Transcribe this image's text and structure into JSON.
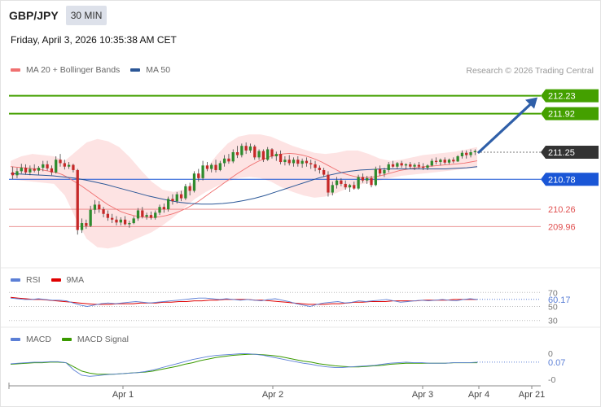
{
  "header": {
    "symbol": "GBP/JPY",
    "timeframe": "30 MIN",
    "datetime": "Friday, April 3, 2026 10:35:38 AM CET",
    "copyright": "Research © 2026 Trading Central"
  },
  "legends": {
    "main": [
      {
        "label": "MA 20 + Bollinger Bands",
        "color": "#f07070"
      },
      {
        "label": "MA 50",
        "color": "#2b5797"
      }
    ],
    "rsi": [
      {
        "label": "RSI",
        "color": "#5b7fd6"
      },
      {
        "label": "9MA",
        "color": "#e00000"
      }
    ],
    "macd": [
      {
        "label": "MACD",
        "color": "#5b7fd6"
      },
      {
        "label": "MACD Signal",
        "color": "#3a9a00"
      }
    ]
  },
  "chart_data": {
    "type": "candlestick",
    "x_labels": [
      "Apr 1",
      "Apr 2",
      "Apr 3",
      "Apr 4",
      "Apr 21"
    ],
    "ylim": [
      209.3,
      212.55
    ],
    "candles": [
      [
        210.9,
        211.0,
        210.78,
        210.85
      ],
      [
        210.85,
        210.98,
        210.8,
        210.92
      ],
      [
        210.92,
        211.05,
        210.88,
        210.98
      ],
      [
        210.98,
        211.04,
        210.86,
        210.9
      ],
      [
        210.9,
        211.02,
        210.85,
        210.96
      ],
      [
        210.96,
        211.04,
        210.9,
        210.93
      ],
      [
        210.93,
        211.01,
        210.86,
        210.98
      ],
      [
        210.98,
        211.1,
        210.92,
        211.04
      ],
      [
        211.04,
        211.1,
        210.93,
        210.97
      ],
      [
        210.97,
        211.02,
        210.85,
        210.9
      ],
      [
        210.9,
        211.18,
        210.88,
        211.12
      ],
      [
        211.12,
        211.22,
        211.0,
        211.06
      ],
      [
        211.06,
        211.12,
        210.95,
        211.0
      ],
      [
        211.0,
        211.08,
        210.96,
        211.03
      ],
      [
        211.03,
        211.05,
        210.9,
        210.94
      ],
      [
        210.94,
        210.96,
        209.82,
        209.9
      ],
      [
        209.9,
        210.1,
        209.85,
        210.02
      ],
      [
        210.02,
        210.08,
        209.92,
        209.97
      ],
      [
        209.97,
        210.32,
        209.95,
        210.25
      ],
      [
        210.25,
        210.42,
        210.18,
        210.34
      ],
      [
        210.34,
        210.4,
        210.2,
        210.26
      ],
      [
        210.26,
        210.3,
        210.12,
        210.18
      ],
      [
        210.18,
        210.24,
        210.06,
        210.11
      ],
      [
        210.11,
        210.18,
        210.02,
        210.08
      ],
      [
        210.08,
        210.14,
        209.98,
        210.03
      ],
      [
        210.03,
        210.12,
        209.98,
        210.08
      ],
      [
        210.08,
        210.14,
        209.98,
        210.0
      ],
      [
        210.0,
        210.06,
        209.94,
        210.02
      ],
      [
        210.02,
        210.14,
        210.0,
        210.1
      ],
      [
        210.1,
        210.28,
        210.06,
        210.24
      ],
      [
        210.24,
        210.3,
        210.1,
        210.13
      ],
      [
        210.13,
        210.2,
        210.08,
        210.16
      ],
      [
        210.16,
        210.22,
        210.08,
        210.11
      ],
      [
        210.11,
        210.24,
        210.08,
        210.2
      ],
      [
        210.2,
        210.34,
        210.16,
        210.3
      ],
      [
        210.3,
        210.36,
        210.2,
        210.26
      ],
      [
        210.26,
        210.48,
        210.22,
        210.44
      ],
      [
        210.44,
        210.52,
        210.34,
        210.4
      ],
      [
        210.4,
        210.56,
        210.36,
        210.52
      ],
      [
        210.52,
        210.58,
        210.4,
        210.45
      ],
      [
        210.45,
        210.7,
        210.42,
        210.66
      ],
      [
        210.66,
        210.72,
        210.5,
        210.58
      ],
      [
        210.58,
        210.92,
        210.55,
        210.88
      ],
      [
        210.88,
        210.96,
        210.74,
        210.8
      ],
      [
        210.8,
        211.1,
        210.76,
        211.02
      ],
      [
        211.02,
        211.08,
        210.92,
        210.96
      ],
      [
        210.96,
        211.06,
        210.9,
        211.03
      ],
      [
        211.03,
        211.12,
        210.9,
        210.94
      ],
      [
        210.94,
        211.1,
        210.92,
        211.06
      ],
      [
        211.06,
        211.2,
        211.0,
        211.14
      ],
      [
        211.14,
        211.22,
        211.05,
        211.09
      ],
      [
        211.09,
        211.3,
        211.06,
        211.25
      ],
      [
        211.25,
        211.36,
        211.15,
        211.2
      ],
      [
        211.2,
        211.4,
        211.16,
        211.36
      ],
      [
        211.36,
        211.42,
        211.22,
        211.28
      ],
      [
        211.28,
        211.4,
        211.24,
        211.35
      ],
      [
        211.35,
        211.38,
        211.12,
        211.16
      ],
      [
        211.16,
        211.3,
        211.12,
        211.27
      ],
      [
        211.27,
        211.3,
        211.08,
        211.12
      ],
      [
        211.12,
        211.34,
        211.1,
        211.3
      ],
      [
        211.3,
        211.32,
        211.14,
        211.18
      ],
      [
        211.18,
        211.26,
        211.1,
        211.22
      ],
      [
        211.22,
        211.28,
        211.04,
        211.08
      ],
      [
        211.08,
        211.18,
        211.02,
        211.12
      ],
      [
        211.12,
        211.2,
        211.02,
        211.06
      ],
      [
        211.06,
        211.16,
        211.0,
        211.12
      ],
      [
        211.12,
        211.18,
        211.0,
        211.05
      ],
      [
        211.05,
        211.14,
        210.98,
        211.1
      ],
      [
        211.1,
        211.16,
        211.0,
        211.06
      ],
      [
        211.06,
        211.12,
        210.96,
        211.04
      ],
      [
        211.04,
        211.1,
        210.92,
        210.98
      ],
      [
        210.98,
        211.02,
        210.88,
        210.94
      ],
      [
        210.94,
        210.98,
        210.82,
        210.86
      ],
      [
        210.86,
        210.92,
        210.48,
        210.55
      ],
      [
        210.55,
        210.74,
        210.5,
        210.68
      ],
      [
        210.68,
        210.82,
        210.62,
        210.76
      ],
      [
        210.76,
        210.8,
        210.66,
        210.7
      ],
      [
        210.7,
        210.76,
        210.6,
        210.64
      ],
      [
        210.64,
        210.7,
        210.56,
        210.68
      ],
      [
        210.68,
        210.74,
        210.6,
        210.62
      ],
      [
        210.62,
        210.86,
        210.6,
        210.82
      ],
      [
        210.82,
        210.88,
        210.72,
        210.76
      ],
      [
        210.76,
        210.84,
        210.7,
        210.8
      ],
      [
        210.8,
        210.84,
        210.64,
        210.68
      ],
      [
        210.68,
        211.0,
        210.66,
        210.96
      ],
      [
        210.96,
        211.02,
        210.84,
        210.88
      ],
      [
        210.88,
        210.98,
        210.82,
        210.94
      ],
      [
        210.94,
        211.08,
        210.9,
        211.04
      ],
      [
        211.04,
        211.1,
        210.98,
        211.0
      ],
      [
        211.0,
        211.08,
        210.96,
        211.06
      ],
      [
        211.06,
        211.1,
        210.98,
        211.02
      ],
      [
        211.02,
        211.06,
        210.96,
        211.04
      ],
      [
        211.04,
        211.08,
        210.96,
        211.0
      ],
      [
        211.0,
        211.06,
        210.94,
        211.03
      ],
      [
        211.03,
        211.08,
        210.96,
        211.0
      ],
      [
        211.0,
        211.06,
        210.94,
        210.98
      ],
      [
        210.98,
        211.04,
        210.94,
        211.02
      ],
      [
        211.02,
        211.14,
        211.0,
        211.1
      ],
      [
        211.1,
        211.16,
        211.04,
        211.08
      ],
      [
        211.08,
        211.14,
        211.02,
        211.12
      ],
      [
        211.12,
        211.16,
        211.04,
        211.07
      ],
      [
        211.07,
        211.14,
        211.04,
        211.12
      ],
      [
        211.12,
        211.16,
        211.06,
        211.09
      ],
      [
        211.09,
        211.2,
        211.08,
        211.18
      ],
      [
        211.18,
        211.28,
        211.14,
        211.24
      ],
      [
        211.24,
        211.28,
        211.14,
        211.2
      ],
      [
        211.2,
        211.3,
        211.16,
        211.25
      ],
      [
        211.25,
        211.3,
        211.2,
        211.27
      ]
    ],
    "ma20": [
      211.0,
      210.99,
      210.98,
      210.97,
      210.96,
      210.94,
      210.92,
      210.9,
      210.86,
      210.8,
      210.73,
      210.66,
      210.58,
      210.5,
      210.42,
      210.34,
      210.28,
      210.22,
      210.18,
      210.15,
      210.13,
      210.12,
      210.12,
      210.13,
      210.15,
      210.18,
      210.22,
      210.27,
      210.33,
      210.4,
      210.48,
      210.56,
      210.64,
      210.72,
      210.8,
      210.88,
      210.95,
      211.02,
      211.08,
      211.13,
      211.17,
      211.2,
      211.22,
      211.23,
      211.22,
      211.2,
      211.17,
      211.13,
      211.08,
      211.02,
      210.96,
      210.9,
      210.86,
      210.83,
      210.81,
      210.81,
      210.82,
      210.84,
      210.87,
      210.9,
      210.93,
      210.95,
      210.97,
      210.99,
      211.0,
      211.01,
      211.02,
      211.03,
      211.04,
      211.05,
      211.06,
      211.08,
      211.1
    ],
    "ma50": [
      210.88,
      210.87,
      210.86,
      210.85,
      210.84,
      210.82,
      210.8,
      210.77,
      210.73,
      210.69,
      210.64,
      210.59,
      210.54,
      210.49,
      210.45,
      210.41,
      210.38,
      210.36,
      210.35,
      210.35,
      210.36,
      210.38,
      210.41,
      210.45,
      210.5,
      210.56,
      210.62,
      210.68,
      210.74,
      210.8,
      210.85,
      210.89,
      210.92,
      210.94,
      210.95,
      210.96,
      210.96,
      210.96,
      210.96,
      210.96,
      210.96,
      210.96,
      210.97,
      210.98,
      211.0
    ],
    "bb_upper": [
      211.1,
      211.18,
      211.22,
      211.2,
      211.18,
      211.1,
      211.26,
      211.42,
      211.48,
      211.44,
      211.34,
      211.16,
      210.94,
      210.74,
      210.6,
      210.56,
      210.6,
      210.74,
      210.96,
      211.2,
      211.4,
      211.52,
      211.56,
      211.56,
      211.52,
      211.44,
      211.36,
      211.3,
      211.24,
      211.22,
      211.24,
      211.28,
      211.28,
      211.22,
      211.14,
      211.1,
      211.12,
      211.16,
      211.2,
      211.22,
      211.24,
      211.26,
      211.3,
      211.34
    ],
    "bb_lower": [
      210.78,
      210.76,
      210.74,
      210.72,
      210.7,
      210.5,
      210.1,
      209.75,
      209.6,
      209.58,
      209.62,
      209.7,
      209.78,
      209.86,
      209.98,
      210.12,
      210.28,
      210.44,
      210.56,
      210.66,
      210.74,
      210.8,
      210.82,
      210.8,
      210.74,
      210.64,
      210.56,
      210.5,
      210.46,
      210.48,
      210.54,
      210.62,
      210.68,
      210.72,
      210.76,
      210.8,
      210.84,
      210.86,
      210.88,
      210.9,
      210.92,
      210.94,
      210.96,
      210.98
    ],
    "levels": [
      {
        "value": "212.23",
        "price": 212.23,
        "color": "#44a000",
        "style": "solid",
        "tag": "filled"
      },
      {
        "value": "211.92",
        "price": 211.92,
        "color": "#44a000",
        "style": "solid",
        "tag": "filled"
      },
      {
        "value": "211.25",
        "price": 211.25,
        "color": "#333333",
        "style": "dotted",
        "tag": "filled"
      },
      {
        "value": "210.78",
        "price": 210.78,
        "color": "#1a56d6",
        "style": "solid",
        "tag": "filled"
      },
      {
        "value": "210.26",
        "price": 210.26,
        "color": "#e05050",
        "style": "solid",
        "tag": "text"
      },
      {
        "value": "209.96",
        "price": 209.96,
        "color": "#e05050",
        "style": "solid",
        "tag": "text"
      }
    ],
    "projection": {
      "from_price": 211.25,
      "to_price": 212.23
    },
    "rsi": {
      "ylim": [
        25,
        75
      ],
      "tick_labels": [
        "70",
        "50",
        "30"
      ],
      "current": "60.17",
      "rsi": [
        62,
        61,
        60,
        60,
        61,
        60,
        59,
        59,
        58,
        55,
        52,
        50,
        52,
        54,
        55,
        54,
        55,
        56,
        57,
        56,
        55,
        56,
        57,
        58,
        59,
        60,
        61,
        62,
        62,
        61,
        60,
        61,
        60,
        59,
        60,
        59,
        58,
        60,
        61,
        59,
        57,
        54,
        52,
        50,
        53,
        55,
        56,
        57,
        55,
        56,
        58,
        57,
        58,
        59,
        60,
        58,
        56,
        57,
        58,
        59,
        58,
        59,
        60,
        59,
        58,
        60,
        61,
        60
      ],
      "ma9": [
        63,
        62,
        61,
        60,
        60,
        59,
        58,
        57,
        56,
        55,
        54,
        53,
        53,
        53,
        54,
        54,
        54,
        55,
        55,
        55,
        56,
        56,
        57,
        57,
        58,
        58,
        59,
        59,
        60,
        60,
        60,
        60,
        59,
        59,
        58,
        57,
        56,
        55,
        54,
        53,
        53,
        53,
        54,
        54,
        55,
        56,
        56,
        57,
        57,
        57,
        58,
        58,
        58,
        58,
        59,
        59,
        59,
        59,
        60,
        60,
        60,
        60
      ]
    },
    "macd": {
      "ylim": [
        -0.32,
        0.38
      ],
      "tick_labels": [
        "0",
        "-0"
      ],
      "current": "0.07",
      "macd": [
        0.04,
        0.05,
        0.06,
        0.07,
        0.07,
        0.08,
        0.08,
        0.06,
        -0.08,
        -0.18,
        -0.2,
        -0.19,
        -0.17,
        -0.16,
        -0.15,
        -0.14,
        -0.13,
        -0.11,
        -0.08,
        -0.04,
        0.0,
        0.04,
        0.08,
        0.12,
        0.15,
        0.18,
        0.2,
        0.21,
        0.22,
        0.23,
        0.23,
        0.22,
        0.2,
        0.17,
        0.14,
        0.11,
        0.08,
        0.05,
        0.03,
        0.0,
        -0.02,
        -0.03,
        -0.03,
        -0.02,
        -0.01,
        0.0,
        0.01,
        0.03,
        0.05,
        0.06,
        0.07,
        0.06,
        0.06,
        0.05,
        0.05,
        0.05,
        0.06,
        0.06,
        0.06,
        0.07
      ],
      "signal": [
        0.03,
        0.04,
        0.05,
        0.06,
        0.06,
        0.07,
        0.07,
        0.06,
        -0.02,
        -0.1,
        -0.14,
        -0.16,
        -0.16,
        -0.16,
        -0.15,
        -0.14,
        -0.13,
        -0.12,
        -0.1,
        -0.07,
        -0.04,
        -0.01,
        0.03,
        0.06,
        0.1,
        0.13,
        0.16,
        0.18,
        0.2,
        0.21,
        0.22,
        0.22,
        0.21,
        0.2,
        0.18,
        0.15,
        0.12,
        0.09,
        0.07,
        0.04,
        0.02,
        0.0,
        -0.01,
        -0.02,
        -0.02,
        -0.01,
        0.0,
        0.01,
        0.03,
        0.04,
        0.05,
        0.05,
        0.05,
        0.05,
        0.05,
        0.05,
        0.06,
        0.06,
        0.06,
        0.06
      ]
    }
  }
}
